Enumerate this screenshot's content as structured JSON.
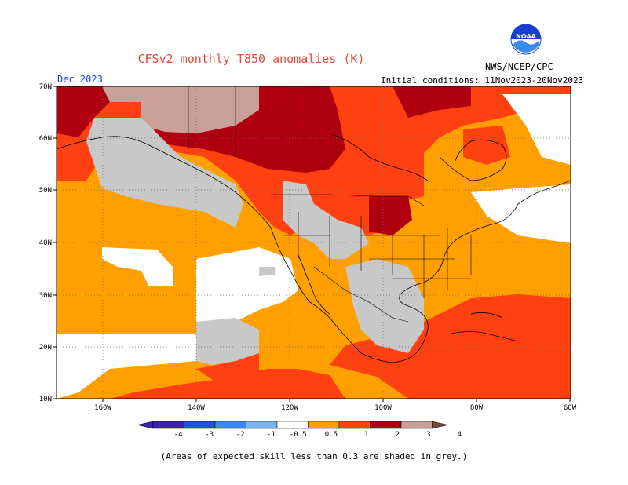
{
  "header": {
    "title": "CFSv2 monthly T850 anomalies (K)",
    "agency": "NWS/NCEP/CPC",
    "logo_text": "NOAA",
    "month": "Dec 2023",
    "initial_conditions": "Initial conditions: 11Nov2023-20Nov2023"
  },
  "axes": {
    "lat_labels": [
      "70N",
      "60N",
      "50N",
      "40N",
      "30N",
      "20N",
      "10N"
    ],
    "lon_labels": [
      "160W",
      "140W",
      "120W",
      "100W",
      "80W",
      "60W"
    ]
  },
  "legend": {
    "labels": [
      "-4",
      "-3",
      "-2",
      "-1",
      "-0.5",
      "0.5",
      "1",
      "2",
      "3",
      "4"
    ],
    "colors": [
      "#3a1fb0",
      "#1f55d8",
      "#3c8ae8",
      "#78b4f0",
      "#ffffff",
      "#ffa000",
      "#ff4010",
      "#b00010",
      "#c8a098",
      "#7a4a40"
    ]
  },
  "colors": {
    "grey_skill": "#c8c8c8",
    "anom_05_1": "#ffa000",
    "anom_1_2": "#ff4010",
    "anom_2_3": "#b00010",
    "anom_3_4": "#c8a098"
  },
  "footer": {
    "note": "(Areas of expected skill less than 0.3 are shaded in grey.)"
  }
}
